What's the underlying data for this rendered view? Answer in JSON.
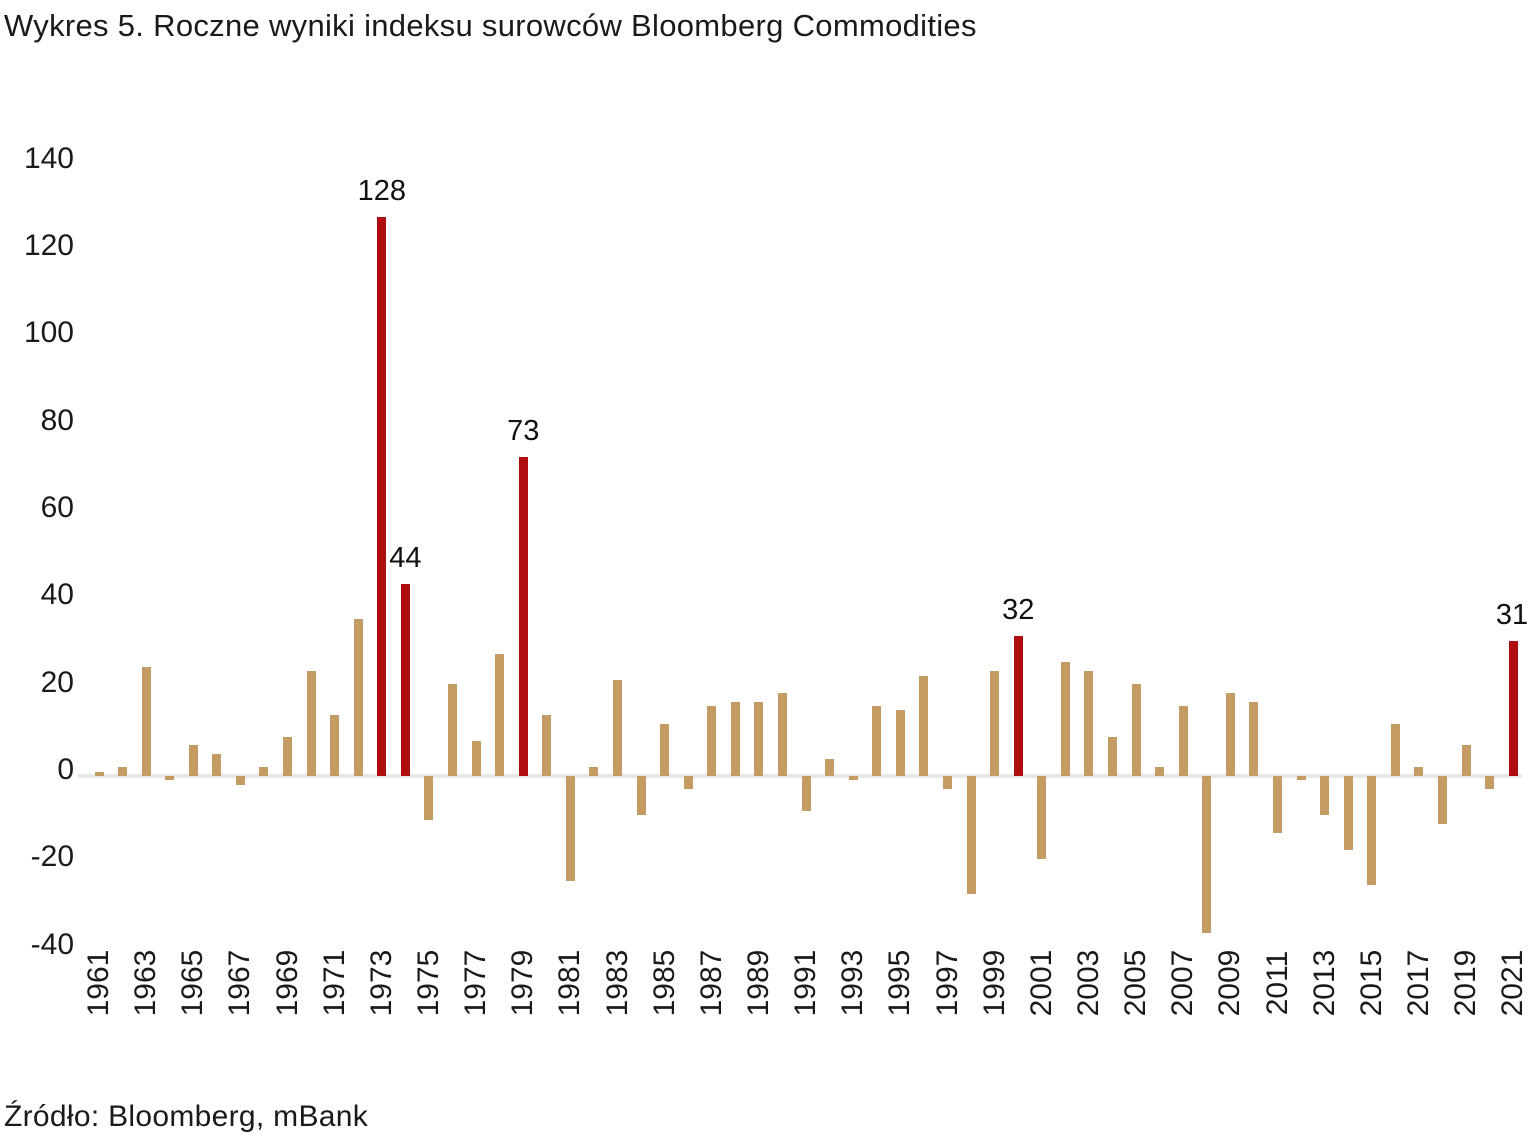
{
  "title": "Wykres 5. Roczne wyniki indeksu surowców Bloomberg Commodities",
  "source": "Źródło: Bloomberg, mBank",
  "chart_data": {
    "type": "bar",
    "title": "Wykres 5. Roczne wyniki indeksu surowców Bloomberg Commodities",
    "xlabel": "",
    "ylabel": "",
    "ylim": [
      -40,
      140
    ],
    "yticks": [
      140,
      120,
      100,
      80,
      60,
      40,
      20,
      0,
      -20,
      -40
    ],
    "grid": false,
    "legend": null,
    "xtick_years": [
      1961,
      1963,
      1965,
      1967,
      1969,
      1971,
      1973,
      1975,
      1977,
      1979,
      1981,
      1983,
      1985,
      1987,
      1989,
      1991,
      1993,
      1995,
      1997,
      1999,
      2001,
      2003,
      2005,
      2007,
      2009,
      2011,
      2013,
      2015,
      2017,
      2019,
      2021
    ],
    "categories": [
      1961,
      1962,
      1963,
      1964,
      1965,
      1966,
      1967,
      1968,
      1969,
      1970,
      1971,
      1972,
      1973,
      1974,
      1975,
      1976,
      1977,
      1978,
      1979,
      1980,
      1981,
      1982,
      1983,
      1984,
      1985,
      1986,
      1987,
      1988,
      1989,
      1990,
      1991,
      1992,
      1993,
      1994,
      1995,
      1996,
      1997,
      1998,
      1999,
      2000,
      2001,
      2002,
      2003,
      2004,
      2005,
      2006,
      2007,
      2008,
      2009,
      2010,
      2011,
      2012,
      2013,
      2014,
      2015,
      2016,
      2017,
      2018,
      2019,
      2020,
      2021
    ],
    "values": [
      1,
      2,
      25,
      -1,
      7,
      5,
      -2,
      2,
      9,
      24,
      14,
      36,
      128,
      44,
      -10,
      21,
      8,
      28,
      73,
      14,
      -24,
      2,
      22,
      -9,
      12,
      -3,
      16,
      17,
      17,
      19,
      -8,
      4,
      -1,
      16,
      15,
      23,
      -3,
      -27,
      24,
      32,
      -19,
      26,
      24,
      9,
      21,
      2,
      16,
      -36,
      19,
      17,
      -13,
      -1,
      -9,
      -17,
      -25,
      12,
      2,
      -11,
      7,
      -3,
      31
    ],
    "highlighted_years": [
      1973,
      1974,
      1979,
      2000,
      2021
    ],
    "bar_labels": {
      "1973": "128",
      "1974": "44",
      "1979": "73",
      "2000": "32",
      "2021": "31"
    },
    "colors": {
      "bar": "#c49b63",
      "highlight": "#b00d11",
      "axis_line": "#e6e6e6",
      "text": "#1a1a1a"
    }
  }
}
